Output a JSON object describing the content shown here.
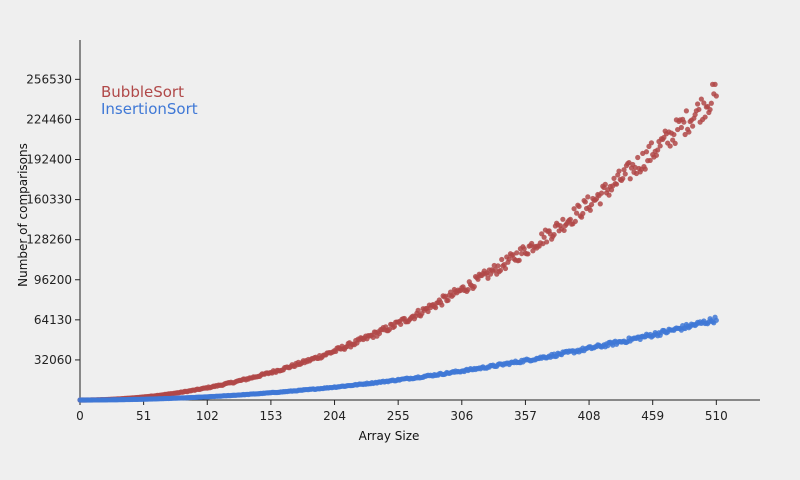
{
  "chart_data": {
    "type": "scatter",
    "title": "",
    "xlabel": "Array Size",
    "ylabel": "Number of comparisons",
    "xlim": [
      0,
      545
    ],
    "ylim": [
      0,
      288000
    ],
    "x_ticks": [
      0,
      51,
      102,
      153,
      204,
      255,
      306,
      357,
      408,
      459,
      510
    ],
    "y_ticks": [
      32060,
      64130,
      96200,
      128260,
      160330,
      192400,
      224460,
      256530
    ],
    "x_tick_labels": [
      "0",
      "51",
      "102",
      "153",
      "204",
      "255",
      "306",
      "357",
      "408",
      "459",
      "510"
    ],
    "y_tick_labels": [
      "32060",
      "64130",
      "96200",
      "128260",
      "160330",
      "192400",
      "224460",
      "256530"
    ],
    "legend_position": "top-left",
    "grid": false,
    "series": [
      {
        "name": "BubbleSort",
        "color": "#b04848",
        "x_range": [
          0,
          510
        ],
        "approx_y_at_end": 245000,
        "trend": "quadratic",
        "sample_points": [
          {
            "x": 51,
            "y": 2500
          },
          {
            "x": 102,
            "y": 10200
          },
          {
            "x": 153,
            "y": 23000
          },
          {
            "x": 204,
            "y": 41500
          },
          {
            "x": 255,
            "y": 62000
          },
          {
            "x": 306,
            "y": 88000
          },
          {
            "x": 357,
            "y": 121000
          },
          {
            "x": 408,
            "y": 155000
          },
          {
            "x": 459,
            "y": 198000
          },
          {
            "x": 510,
            "y": 245000
          }
        ]
      },
      {
        "name": "InsertionSort",
        "color": "#3f78d6",
        "x_range": [
          0,
          510
        ],
        "approx_y_at_end": 64500,
        "trend": "quadratic",
        "sample_points": [
          {
            "x": 51,
            "y": 600
          },
          {
            "x": 102,
            "y": 2600
          },
          {
            "x": 153,
            "y": 5800
          },
          {
            "x": 204,
            "y": 10300
          },
          {
            "x": 255,
            "y": 16100
          },
          {
            "x": 306,
            "y": 23200
          },
          {
            "x": 357,
            "y": 31600
          },
          {
            "x": 408,
            "y": 41200
          },
          {
            "x": 459,
            "y": 52200
          },
          {
            "x": 510,
            "y": 64500
          }
        ]
      }
    ]
  }
}
